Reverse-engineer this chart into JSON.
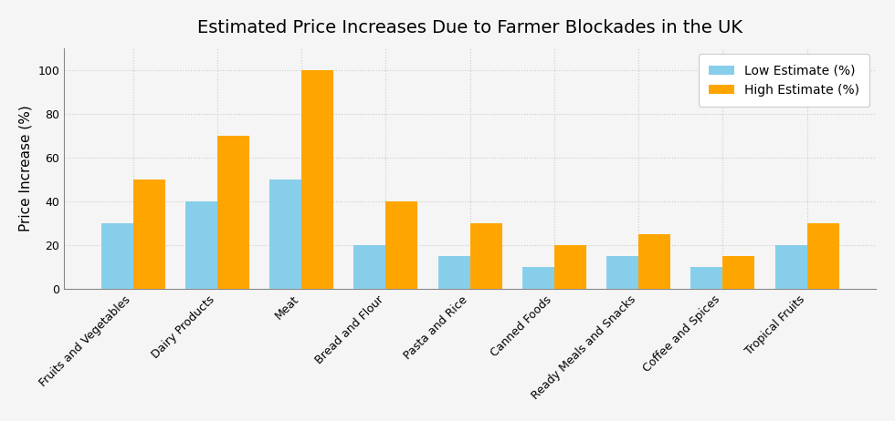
{
  "title": "Estimated Price Increases Due to Farmer Blockades in the UK",
  "categories": [
    "Fruits and Vegetables",
    "Dairy Products",
    "Meat",
    "Bread and Flour",
    "Pasta and Rice",
    "Canned Foods",
    "Ready Meals and Snacks",
    "Coffee and Spices",
    "Tropical Fruits"
  ],
  "low_estimates": [
    30,
    40,
    50,
    20,
    15,
    10,
    15,
    10,
    20
  ],
  "high_estimates": [
    50,
    70,
    100,
    40,
    30,
    20,
    25,
    15,
    30
  ],
  "low_color": "#87CEEB",
  "high_color": "#FFA500",
  "ylabel": "Price Increase (%)",
  "legend_low": "Low Estimate (%)",
  "legend_high": "High Estimate (%)",
  "ylim": [
    0,
    110
  ],
  "fig_background": "#f5f5f5",
  "plot_background": "#f5f5f5",
  "bar_width": 0.38,
  "title_fontsize": 14,
  "axis_fontsize": 11,
  "tick_fontsize": 9,
  "grid_color": "#cccccc",
  "legend_fontsize": 10
}
